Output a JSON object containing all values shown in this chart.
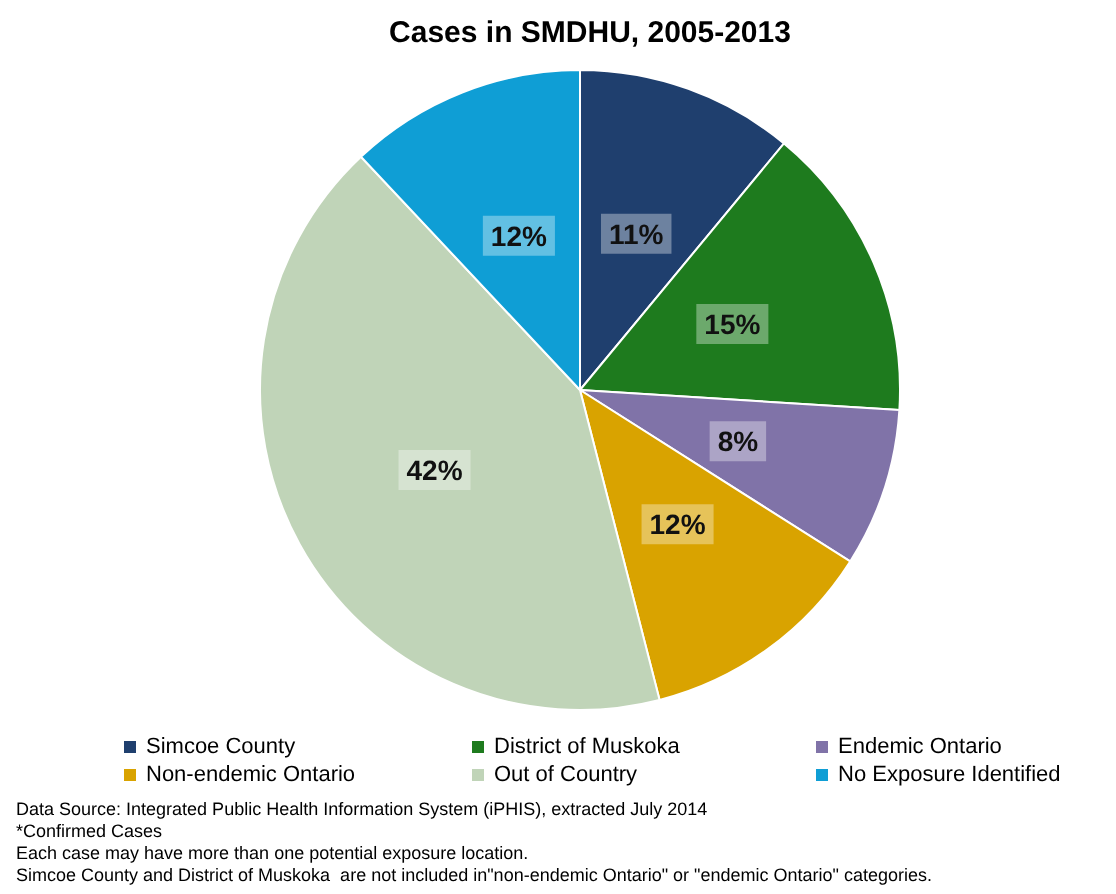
{
  "chart_data": {
    "type": "pie",
    "title": "Cases in SMDHU, 2005-2013",
    "categories": [
      "Simcoe County",
      "District of Muskoka",
      "Endemic Ontario",
      "Non-endemic Ontario",
      "Out of Country",
      "No Exposure Identified"
    ],
    "values": [
      11,
      15,
      8,
      12,
      42,
      12
    ],
    "colors": [
      "#1f3f6e",
      "#1e7b1e",
      "#8073a8",
      "#d9a300",
      "#c0d4b8",
      "#0f9ed5"
    ],
    "value_labels": [
      "11%",
      "15%",
      "8%",
      "12%",
      "42%",
      "12%"
    ],
    "legend": "bottom",
    "annotations": [
      "Data Source: Integrated Public Health Information System (iPHIS), extracted July 2014",
      "*Confirmed Cases",
      "Each case may have more than one potential exposure location.",
      "Simcoe County and District of Muskoka  are not included in\"non-endemic Ontario\" or \"endemic Ontario\" categories."
    ]
  }
}
